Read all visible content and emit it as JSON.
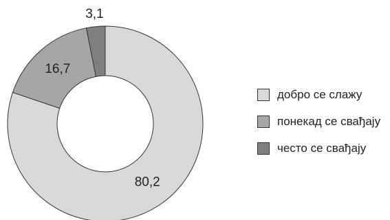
{
  "chart_data": {
    "type": "pie",
    "variant": "donut",
    "categories": [
      "добро се слажу",
      "понекад се свађају",
      "често се свађају"
    ],
    "values": [
      80.2,
      16.7,
      3.1
    ],
    "value_labels": [
      "80,2",
      "16,7",
      "3,1"
    ],
    "colors": [
      "#d9d9d9",
      "#a6a6a6",
      "#7f7f7f"
    ],
    "start": "top, clockwise",
    "legend_position": "right"
  }
}
